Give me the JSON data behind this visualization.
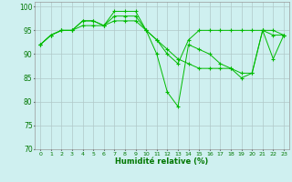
{
  "title": "",
  "xlabel": "Humidité relative (%)",
  "ylabel": "",
  "xlim": [
    -0.5,
    23.5
  ],
  "ylim": [
    70,
    101
  ],
  "yticks": [
    70,
    75,
    80,
    85,
    90,
    95,
    100
  ],
  "xticks": [
    0,
    1,
    2,
    3,
    4,
    5,
    6,
    7,
    8,
    9,
    10,
    11,
    12,
    13,
    14,
    15,
    16,
    17,
    18,
    19,
    20,
    21,
    22,
    23
  ],
  "background_color": "#cff0f0",
  "grid_color": "#b0c8c8",
  "line_color": "#00bb00",
  "tick_color": "#007700",
  "series": [
    [
      92,
      94,
      95,
      95,
      97,
      97,
      96,
      99,
      99,
      99,
      95,
      90,
      82,
      79,
      92,
      91,
      90,
      88,
      87,
      85,
      86,
      95,
      94,
      94
    ],
    [
      92,
      94,
      95,
      95,
      97,
      97,
      96,
      98,
      98,
      98,
      95,
      93,
      90,
      88,
      93,
      95,
      95,
      95,
      95,
      95,
      95,
      95,
      95,
      94
    ],
    [
      92,
      94,
      95,
      95,
      96,
      96,
      96,
      97,
      97,
      97,
      95,
      93,
      91,
      89,
      88,
      87,
      87,
      87,
      87,
      86,
      86,
      95,
      89,
      94
    ]
  ]
}
